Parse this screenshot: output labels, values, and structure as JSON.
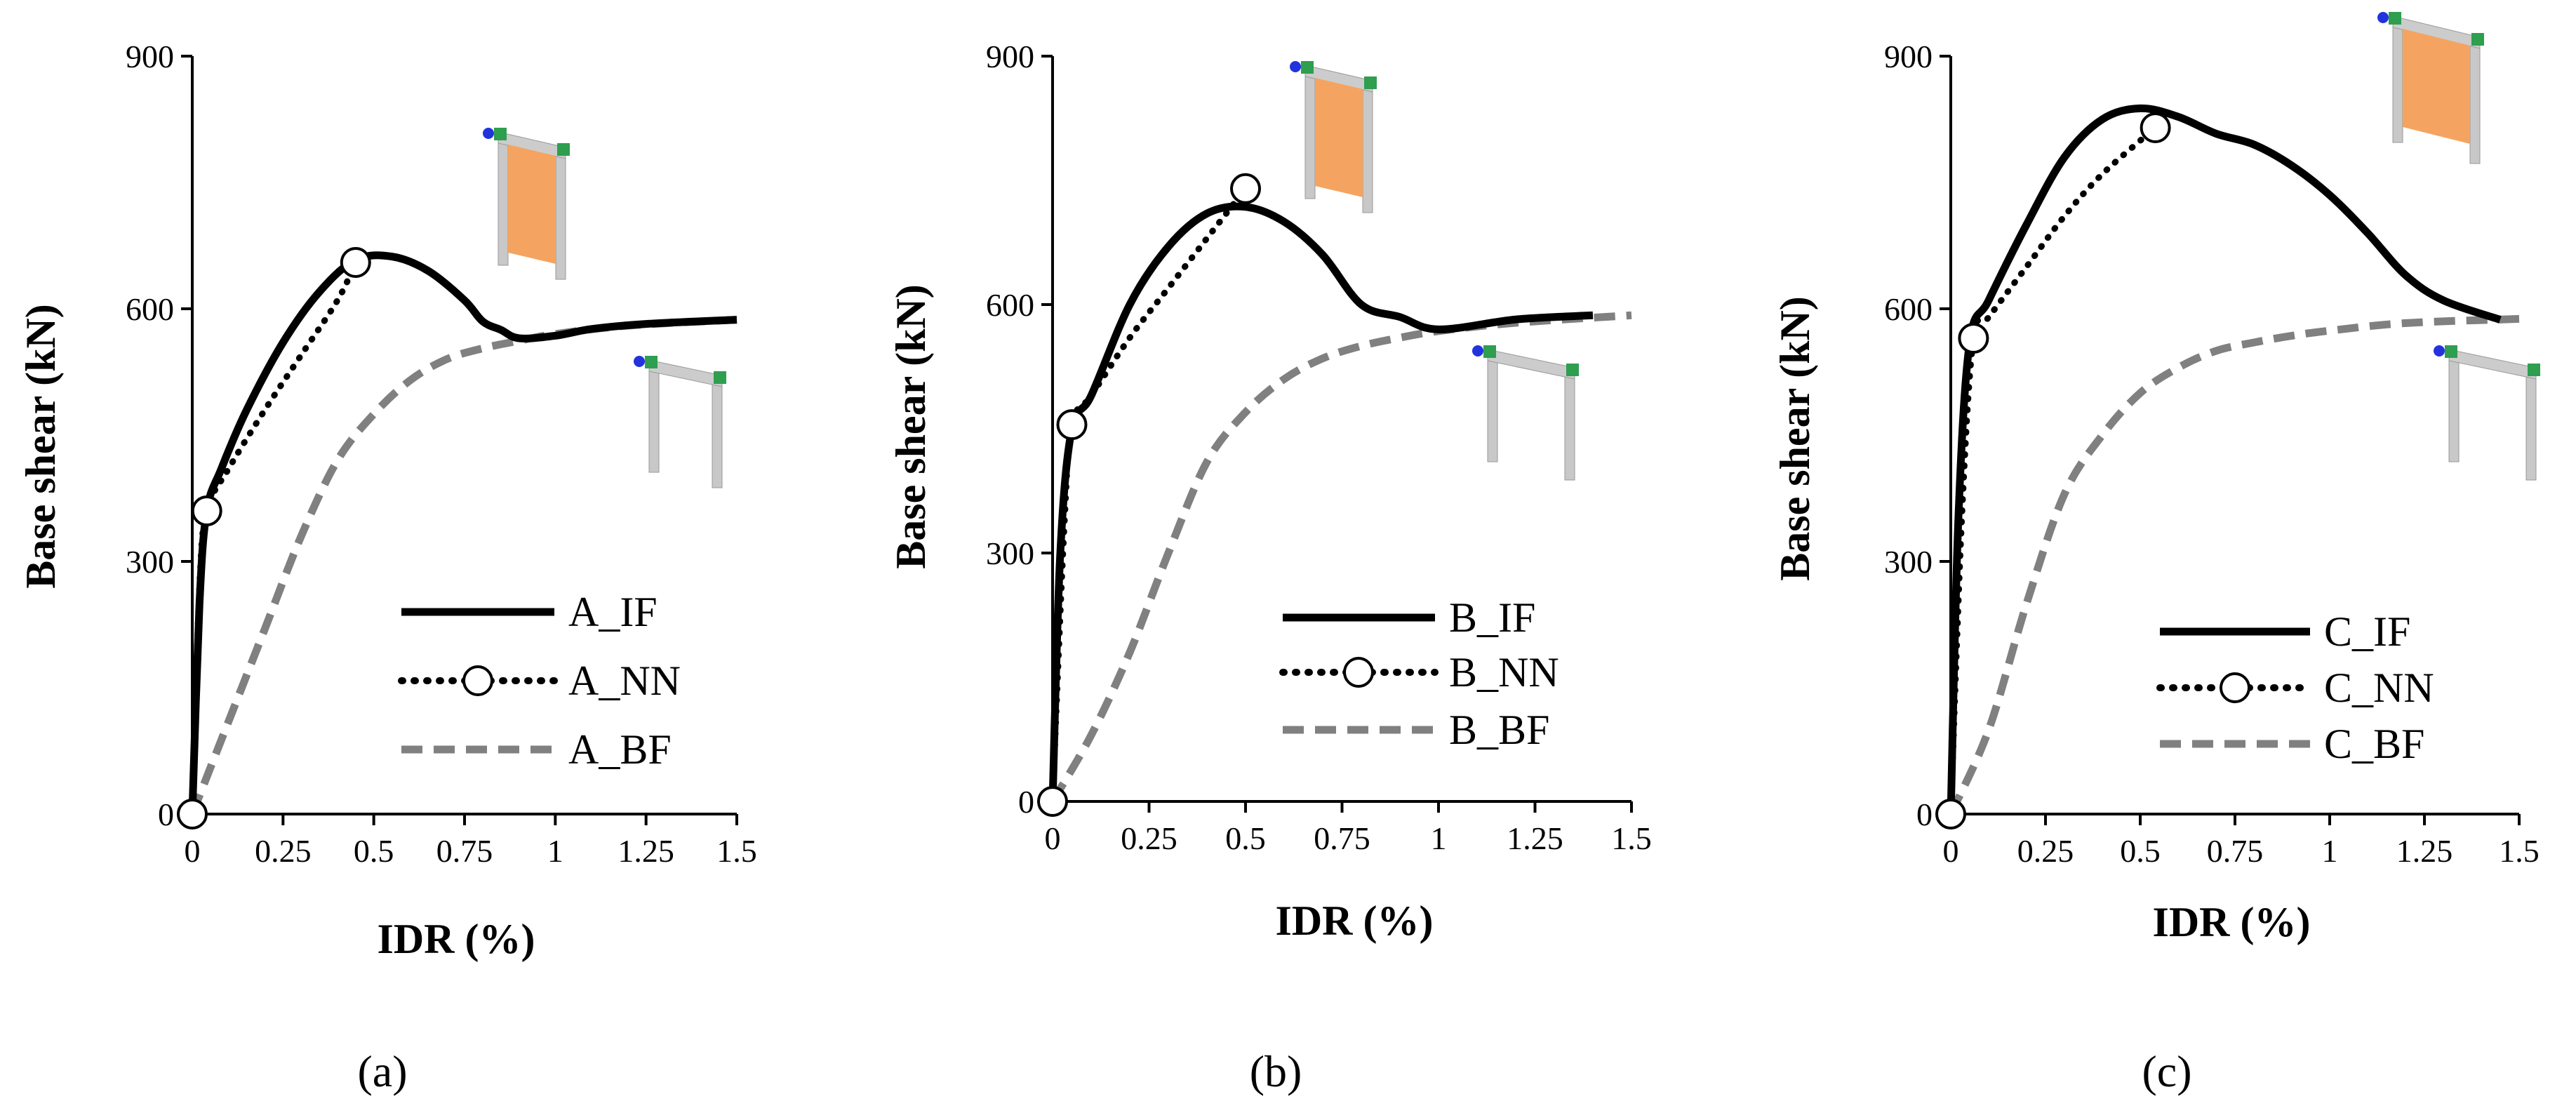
{
  "chart_data": [
    {
      "type": "line",
      "panel_label": "(a)",
      "xlabel": "IDR (%)",
      "ylabel": "Base shear (kN)",
      "xlim": [
        0,
        1.5
      ],
      "ylim": [
        0,
        900
      ],
      "xticks": [
        "0",
        "0.25",
        "0.5",
        "0.75",
        "1",
        "1.25",
        "1.5"
      ],
      "yticks": [
        "0",
        "300",
        "600",
        "900"
      ],
      "legend_position": "bottom-right",
      "series": [
        {
          "name": "A_IF",
          "style": "solid",
          "color": "#000000",
          "x": [
            0,
            0.02,
            0.04,
            0.08,
            0.15,
            0.25,
            0.35,
            0.45,
            0.55,
            0.65,
            0.75,
            0.8,
            0.85,
            0.9,
            1.0,
            1.1,
            1.25,
            1.5
          ],
          "y": [
            0,
            250,
            360,
            410,
            480,
            560,
            620,
            658,
            662,
            645,
            610,
            585,
            575,
            565,
            568,
            576,
            582,
            587
          ]
        },
        {
          "name": "A_NN",
          "style": "dotted",
          "color": "#000000",
          "markers": "endpoints",
          "x": [
            0,
            0.02,
            0.04,
            0.1,
            0.2,
            0.3,
            0.4,
            0.45
          ],
          "y": [
            0,
            270,
            360,
            410,
            480,
            545,
            610,
            655
          ]
        },
        {
          "name": "A_BF",
          "style": "dashed",
          "color": "#808080",
          "x": [
            0,
            0.1,
            0.2,
            0.3,
            0.4,
            0.5,
            0.6,
            0.7,
            0.8,
            0.9,
            1.0,
            1.2,
            1.5
          ],
          "y": [
            0,
            110,
            220,
            330,
            420,
            475,
            515,
            540,
            553,
            562,
            570,
            580,
            587
          ]
        }
      ]
    },
    {
      "type": "line",
      "panel_label": "(b)",
      "xlabel": "IDR (%)",
      "ylabel": "Base shear (kN)",
      "xlim": [
        0,
        1.5
      ],
      "ylim": [
        0,
        900
      ],
      "xticks": [
        "0",
        "0.25",
        "0.5",
        "0.75",
        "1",
        "1.25",
        "1.5"
      ],
      "yticks": [
        "0",
        "300",
        "600",
        "900"
      ],
      "legend_position": "bottom-right",
      "series": [
        {
          "name": "B_IF",
          "style": "solid",
          "color": "#000000",
          "x": [
            0,
            0.02,
            0.05,
            0.1,
            0.2,
            0.3,
            0.4,
            0.5,
            0.6,
            0.7,
            0.8,
            0.9,
            1.0,
            1.2,
            1.4
          ],
          "y": [
            0,
            300,
            450,
            490,
            600,
            670,
            710,
            718,
            700,
            660,
            600,
            585,
            570,
            582,
            587
          ]
        },
        {
          "name": "B_NN",
          "style": "dotted",
          "color": "#000000",
          "markers": "endpoints",
          "x": [
            0,
            0.03,
            0.05,
            0.1,
            0.2,
            0.3,
            0.4,
            0.5
          ],
          "y": [
            0,
            330,
            455,
            490,
            560,
            620,
            680,
            740
          ]
        },
        {
          "name": "B_BF",
          "style": "dashed",
          "color": "#808080",
          "x": [
            0,
            0.1,
            0.2,
            0.3,
            0.4,
            0.5,
            0.6,
            0.7,
            0.8,
            0.9,
            1.0,
            1.2,
            1.5
          ],
          "y": [
            0,
            80,
            180,
            300,
            410,
            470,
            510,
            535,
            550,
            560,
            568,
            578,
            587
          ]
        }
      ]
    },
    {
      "type": "line",
      "panel_label": "(c)",
      "xlabel": "IDR (%)",
      "ylabel": "Base shear (kN)",
      "xlim": [
        0,
        1.5
      ],
      "ylim": [
        0,
        900
      ],
      "xticks": [
        "0",
        "0.25",
        "0.5",
        "0.75",
        "1",
        "1.25",
        "1.5"
      ],
      "yticks": [
        "0",
        "300",
        "600",
        "900"
      ],
      "legend_position": "bottom-right",
      "series": [
        {
          "name": "C_IF",
          "style": "solid",
          "color": "#000000",
          "x": [
            0,
            0.02,
            0.05,
            0.1,
            0.2,
            0.3,
            0.4,
            0.5,
            0.6,
            0.7,
            0.8,
            0.9,
            1.0,
            1.1,
            1.2,
            1.3,
            1.45
          ],
          "y": [
            0,
            350,
            560,
            610,
            700,
            780,
            825,
            838,
            828,
            808,
            795,
            770,
            735,
            690,
            640,
            610,
            587
          ]
        },
        {
          "name": "C_NN",
          "style": "dotted",
          "color": "#000000",
          "markers": "endpoints",
          "x": [
            0,
            0.03,
            0.06,
            0.1,
            0.2,
            0.3,
            0.4,
            0.54
          ],
          "y": [
            0,
            360,
            565,
            590,
            650,
            710,
            760,
            815
          ]
        },
        {
          "name": "C_BF",
          "style": "dashed",
          "color": "#808080",
          "x": [
            0,
            0.1,
            0.2,
            0.3,
            0.4,
            0.5,
            0.6,
            0.7,
            0.8,
            0.9,
            1.0,
            1.2,
            1.5
          ],
          "y": [
            0,
            100,
            250,
            380,
            450,
            500,
            530,
            550,
            560,
            568,
            574,
            583,
            588
          ]
        }
      ]
    }
  ],
  "colors": {
    "if": "#000000",
    "nn": "#000000",
    "bf": "#808080",
    "infill": "#f4a460",
    "frame": "#c8c8c8",
    "node": "#2e9e4f",
    "actuator": "#2233dd"
  }
}
